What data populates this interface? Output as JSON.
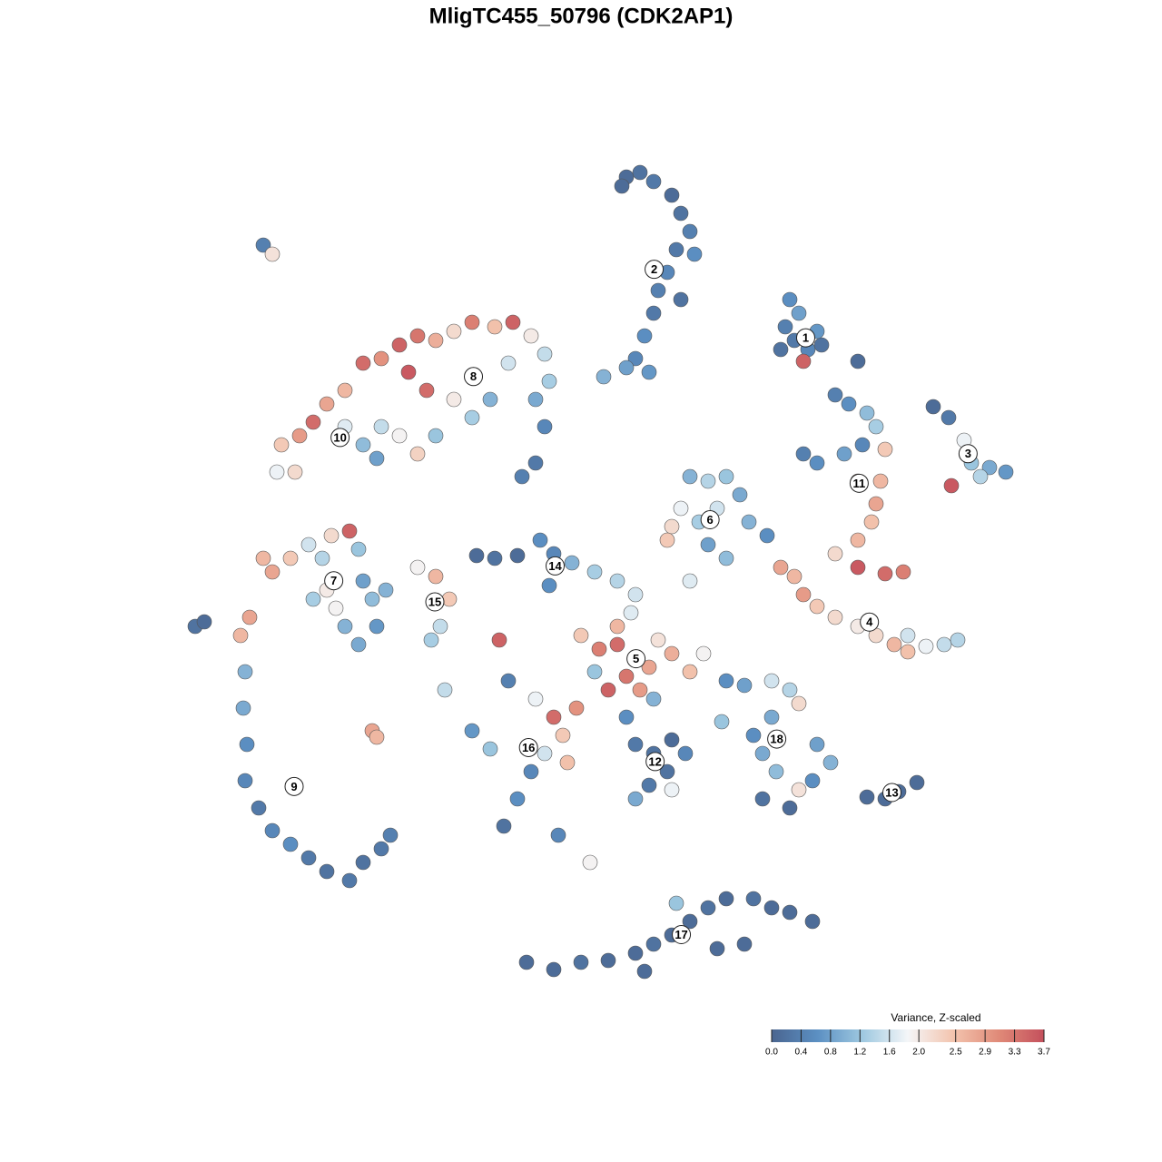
{
  "chart_data": {
    "type": "scatter",
    "title": "MligTC455_50796 (CDK2AP1)",
    "colorbar": {
      "title": "Variance, Z-scaled",
      "lim": [
        0,
        3.7
      ],
      "colors": [
        "#4a6590",
        "#5b8fc2",
        "#9ec8e0",
        "#f4f6f8",
        "#f3c4ae",
        "#e08a78",
        "#c4505c"
      ],
      "ticks": [
        {
          "value": 0,
          "label": "0.0"
        },
        0.4,
        0.8,
        1.2,
        1.6,
        {
          "value": 2,
          "label": "2.0"
        },
        2.5,
        2.9,
        3.3,
        3.7
      ]
    },
    "series": [
      {
        "name": "1",
        "x": [
          87,
          88,
          86.5,
          87.5,
          89,
          90.5,
          88.5,
          86,
          90,
          94.5
        ],
        "y": [
          33,
          34.5,
          36,
          37.5,
          38.5,
          38,
          39.8,
          38.5,
          36.5,
          39.8
        ],
        "values": [
          0.6,
          0.8,
          0.4,
          0.3,
          0.5,
          0.2,
          3.5,
          0.2,
          0.7,
          0.1
        ]
      },
      {
        "name": "2",
        "x": [
          69,
          70.5,
          72,
          74,
          75,
          76,
          74.5,
          73.5,
          72.5,
          72,
          71,
          70,
          69,
          66.5,
          71.5,
          68.5,
          76.5,
          75
        ],
        "y": [
          19.5,
          19,
          20,
          21.5,
          23.5,
          25.5,
          27.5,
          30,
          32,
          34.5,
          37,
          39.5,
          40.5,
          41.5,
          41,
          20.5,
          28,
          33
        ],
        "values": [
          0.1,
          0.2,
          0.3,
          0.1,
          0.2,
          0.4,
          0.3,
          0.5,
          0.4,
          0.3,
          0.6,
          0.5,
          0.8,
          1.0,
          0.7,
          0.1,
          0.6,
          0.2
        ]
      },
      {
        "name": "3",
        "x": [
          102.8,
          104.5,
          106.2,
          107,
          109,
          110.8,
          104.8,
          108
        ],
        "y": [
          44.8,
          46,
          48.5,
          51,
          51.5,
          52,
          53.5,
          52.5
        ],
        "values": [
          0.1,
          0.3,
          1.8,
          1.2,
          0.9,
          0.7,
          3.6,
          1.4
        ]
      },
      {
        "name": "4",
        "x": [
          86,
          87.5,
          88.5,
          90,
          92,
          94.5,
          96.5,
          98.5,
          100,
          102,
          104,
          105.5,
          100
        ],
        "y": [
          62.5,
          63.5,
          65.5,
          66.8,
          68,
          69,
          70,
          71,
          70,
          71.2,
          71,
          70.5,
          71.8
        ],
        "values": [
          2.8,
          2.6,
          2.9,
          2.4,
          2.2,
          2.0,
          2.2,
          2.6,
          1.6,
          1.8,
          1.5,
          1.4,
          2.5
        ]
      },
      {
        "name": "5",
        "x": [
          64,
          66,
          68,
          70,
          71.5,
          69,
          67,
          70.5,
          65.5,
          72.5,
          74,
          76,
          77.5,
          68,
          69.5,
          72
        ],
        "y": [
          70,
          71.5,
          71,
          72.5,
          73.5,
          74.5,
          76,
          76,
          74,
          70.5,
          72,
          74,
          72,
          69,
          67.5,
          77
        ],
        "values": [
          2.4,
          3.2,
          3.4,
          3.0,
          2.8,
          3.3,
          3.5,
          2.9,
          1.2,
          2.1,
          2.7,
          2.5,
          1.9,
          2.6,
          1.7,
          1.0
        ]
      },
      {
        "name": "6",
        "x": [
          76,
          78,
          80,
          81.5,
          79,
          77,
          75,
          74,
          73.5,
          78,
          80,
          82.5,
          84.5,
          76
        ],
        "y": [
          52.5,
          53,
          52.5,
          54.5,
          56,
          57.5,
          56,
          58,
          59.5,
          60,
          61.5,
          57.5,
          59,
          64
        ],
        "values": [
          1.0,
          1.4,
          1.2,
          0.9,
          1.6,
          1.3,
          1.8,
          2.2,
          2.4,
          0.8,
          1.1,
          1.0,
          0.6,
          1.7
        ]
      },
      {
        "name": "7",
        "x": [
          29,
          30,
          32,
          34,
          35.5,
          36.5,
          38.5,
          39.5,
          36,
          37,
          38,
          39.5,
          41,
          42.5,
          34.5,
          40,
          41.5
        ],
        "y": [
          61.5,
          63,
          61.5,
          60,
          61.5,
          59,
          58.5,
          60.5,
          65,
          67,
          69,
          71,
          66,
          65,
          66,
          64,
          69
        ],
        "values": [
          2.6,
          2.8,
          2.4,
          1.6,
          1.4,
          2.2,
          3.5,
          1.2,
          2.0,
          1.9,
          1.0,
          0.9,
          1.1,
          1.0,
          1.3,
          0.8,
          0.7
        ]
      },
      {
        "name": "8",
        "x": [
          40,
          42,
          44,
          46,
          48,
          50,
          52,
          54.5,
          56.5,
          58.5,
          60,
          60.5,
          59,
          60,
          59,
          57.5,
          54,
          52,
          50,
          47,
          45,
          56,
          48
        ],
        "y": [
          40,
          39.5,
          38,
          37,
          37.5,
          36.5,
          35.5,
          36,
          35.5,
          37,
          39,
          42,
          44,
          47,
          51,
          52.5,
          44,
          46,
          44,
          43,
          41,
          40,
          48
        ],
        "values": [
          3.4,
          3.0,
          3.5,
          3.3,
          2.7,
          2.2,
          3.2,
          2.5,
          3.5,
          2.0,
          1.5,
          1.3,
          0.9,
          0.5,
          0.3,
          0.4,
          1.0,
          1.3,
          2.0,
          3.4,
          3.6,
          1.6,
          1.2
        ]
      },
      {
        "name": "9",
        "x": [
          26.5,
          27,
          26.8,
          27.2,
          27,
          28.5,
          30,
          32,
          34,
          36,
          38.5,
          40,
          42,
          43,
          27.5
        ],
        "y": [
          70,
          74,
          78,
          82,
          86,
          89,
          91.5,
          93,
          94.5,
          96,
          97,
          95,
          93.5,
          92,
          68
        ],
        "values": [
          2.6,
          1.0,
          0.9,
          0.6,
          0.5,
          0.3,
          0.5,
          0.6,
          0.3,
          0.2,
          0.3,
          0.2,
          0.3,
          0.4,
          2.8
        ]
      },
      {
        "name": "10",
        "x": [
          31,
          33,
          34.5,
          36,
          38,
          40,
          42,
          44,
          46,
          38,
          41.5,
          30.5,
          32.5
        ],
        "y": [
          49,
          48,
          46.5,
          44.5,
          43,
          49,
          47,
          48,
          50,
          47,
          50.5,
          52,
          52
        ],
        "values": [
          2.4,
          2.9,
          3.4,
          2.8,
          2.6,
          1.1,
          1.5,
          1.9,
          2.3,
          1.7,
          0.8,
          1.8,
          2.2
        ]
      },
      {
        "name": "11",
        "x": [
          92,
          93.5,
          95.5,
          96.5,
          95,
          93,
          90,
          88.5,
          97.5,
          97,
          96.5,
          96,
          94.5,
          92,
          94.5,
          97.5,
          99.5,
          94.5
        ],
        "y": [
          43.5,
          44.5,
          45.5,
          47,
          49,
          50,
          51,
          50,
          49.5,
          53,
          55.5,
          57.5,
          59.5,
          61,
          62.5,
          63.2,
          63,
          53
        ],
        "values": [
          0.4,
          0.6,
          1.1,
          1.3,
          0.5,
          0.8,
          0.6,
          0.4,
          2.4,
          2.6,
          2.8,
          2.5,
          2.6,
          2.2,
          3.6,
          3.4,
          3.2,
          3.2
        ]
      },
      {
        "name": "12",
        "x": [
          70,
          72,
          74,
          75.5,
          73.5,
          71.5,
          70,
          74,
          69
        ],
        "y": [
          82,
          83,
          81.5,
          83,
          85,
          86.5,
          88,
          87,
          79
        ],
        "values": [
          0.3,
          0.2,
          0.1,
          0.5,
          0.2,
          0.3,
          0.9,
          1.8,
          0.6
        ]
      },
      {
        "name": "13",
        "x": [
          95.5,
          97.5,
          99,
          101
        ],
        "y": [
          87.8,
          88,
          87.2,
          86.2
        ],
        "values": [
          0.1,
          0.1,
          0.1,
          0.1
        ]
      },
      {
        "name": "14",
        "x": [
          52.5,
          54.5,
          57,
          59.5,
          61,
          63,
          65.5,
          68,
          70,
          60.5
        ],
        "y": [
          61.2,
          61.5,
          61.2,
          59.5,
          61,
          62,
          63,
          64,
          65.5,
          64.5
        ],
        "values": [
          0.1,
          0.2,
          0.1,
          0.6,
          0.5,
          1.0,
          1.3,
          1.4,
          1.6,
          0.6
        ]
      },
      {
        "name": "15",
        "x": [
          46,
          48,
          49.5,
          48.5,
          47.5
        ],
        "y": [
          62.5,
          63.5,
          66,
          69,
          70.5
        ],
        "values": [
          1.9,
          2.6,
          2.4,
          1.5,
          1.3
        ]
      },
      {
        "name": "16",
        "x": [
          56,
          59,
          61,
          63.5,
          62,
          60,
          62.5,
          58.5,
          57,
          55.5,
          52,
          54,
          49,
          65,
          61.5,
          55
        ],
        "y": [
          75,
          77,
          79,
          78,
          81,
          83,
          84,
          85,
          88,
          91,
          80.5,
          82.5,
          76,
          95,
          92,
          70.5
        ],
        "values": [
          0.4,
          1.8,
          3.4,
          3.0,
          2.4,
          1.6,
          2.5,
          0.5,
          0.6,
          0.2,
          0.7,
          1.2,
          1.5,
          1.9,
          0.5,
          3.5
        ]
      },
      {
        "name": "17",
        "x": [
          58,
          61,
          64,
          67,
          70,
          72,
          74,
          76,
          78,
          80,
          83,
          85,
          87,
          89.5,
          82,
          79,
          74.5,
          71
        ],
        "y": [
          106,
          106.8,
          106,
          105.8,
          105,
          104,
          103,
          101.5,
          100,
          99,
          99,
          100,
          100.5,
          101.5,
          104,
          104.5,
          99.5,
          107
        ],
        "values": [
          0.1,
          0.1,
          0.2,
          0.1,
          0.1,
          0.2,
          0.1,
          0.1,
          0.2,
          0.1,
          0.2,
          0.1,
          0.1,
          0.1,
          0.1,
          0.1,
          1.2,
          0.1
        ]
      },
      {
        "name": "18",
        "x": [
          80,
          82,
          85,
          87,
          88,
          85,
          83,
          84,
          85.5,
          84,
          87,
          88,
          90,
          91.5,
          89.5,
          79.5
        ],
        "y": [
          75,
          75.5,
          75,
          76,
          77.5,
          79,
          81,
          83,
          85,
          88,
          89,
          87,
          82,
          84,
          86,
          79.5
        ],
        "values": [
          0.6,
          0.8,
          1.6,
          1.4,
          2.2,
          0.9,
          0.6,
          0.9,
          1.1,
          0.2,
          0.1,
          2.1,
          0.8,
          1.0,
          0.6,
          1.2
        ]
      },
      {
        "x": [
          29,
          30,
          21.5,
          22.5,
          41,
          41.5
        ],
        "y": [
          27,
          28,
          69,
          68.5,
          80.5,
          81.2
        ],
        "values": [
          0.4,
          2.1,
          0.2,
          0.1,
          2.8,
          2.6
        ]
      }
    ]
  }
}
